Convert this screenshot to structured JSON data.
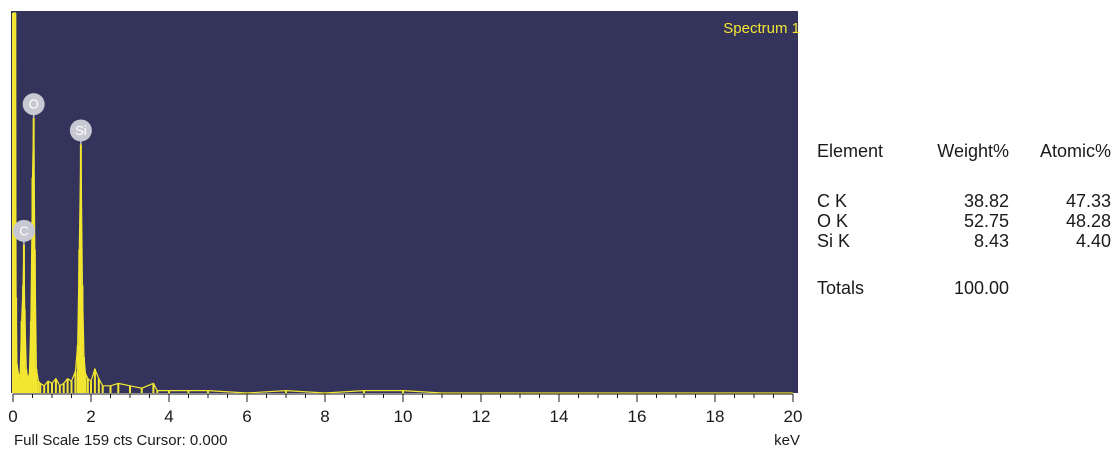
{
  "chart_data": {
    "type": "line",
    "title": "Spectrum 1",
    "xlabel": "keV",
    "xlim": [
      0,
      20
    ],
    "ylim": [
      0,
      159
    ],
    "x_ticks": [
      0,
      2,
      4,
      6,
      8,
      10,
      12,
      14,
      16,
      18,
      20
    ],
    "footer": "Full Scale 159 cts Cursor: 0.000",
    "colors": {
      "background": "#33335c",
      "trace": "#f2e630",
      "marker": "#c8c8d2"
    },
    "peaks": [
      {
        "label": "C",
        "x": 0.28,
        "y": 62
      },
      {
        "label": "O",
        "x": 0.53,
        "y": 115
      },
      {
        "label": "Si",
        "x": 1.74,
        "y": 104
      }
    ],
    "series": [
      {
        "x": [
          0.0,
          0.02,
          0.04,
          0.06,
          0.08,
          0.1,
          0.14,
          0.18,
          0.22,
          0.26,
          0.28,
          0.3,
          0.34,
          0.38,
          0.42,
          0.46,
          0.5,
          0.53,
          0.56,
          0.6,
          0.65,
          0.7,
          0.8,
          0.9,
          1.0,
          1.1,
          1.2,
          1.3,
          1.4,
          1.5,
          1.6,
          1.66,
          1.7,
          1.74,
          1.78,
          1.82,
          1.86,
          1.92,
          2.0,
          2.1,
          2.2,
          2.3,
          2.5,
          2.7,
          3.0,
          3.3,
          3.6,
          3.7,
          4.0,
          4.5,
          5.0,
          6.0,
          7.0,
          8.0,
          9.0,
          10.0,
          11.0,
          12.0,
          13.0,
          14.0,
          15.0,
          16.0,
          17.0,
          18.0,
          19.0,
          20.0
        ],
        "y": [
          159,
          159,
          159,
          159,
          40,
          12,
          8,
          6,
          30,
          45,
          62,
          35,
          10,
          6,
          8,
          30,
          90,
          115,
          60,
          10,
          5,
          4,
          3,
          5,
          4,
          6,
          3,
          4,
          6,
          5,
          9,
          20,
          60,
          104,
          45,
          15,
          8,
          6,
          5,
          10,
          6,
          3,
          3,
          4,
          3,
          2,
          4,
          1,
          1,
          1,
          1,
          0,
          1,
          0,
          1,
          1,
          0,
          0,
          0,
          0,
          0,
          0,
          0,
          0,
          0,
          0
        ]
      }
    ]
  },
  "results": {
    "columns": [
      "Element",
      "Weight%",
      "Atomic%"
    ],
    "rows": [
      {
        "element": "C K",
        "weight": "38.82",
        "atomic": "47.33"
      },
      {
        "element": "O K",
        "weight": "52.75",
        "atomic": "48.28"
      },
      {
        "element": "Si K",
        "weight": "8.43",
        "atomic": "4.40"
      }
    ],
    "totals_label": "Totals",
    "totals_weight": "100.00"
  }
}
